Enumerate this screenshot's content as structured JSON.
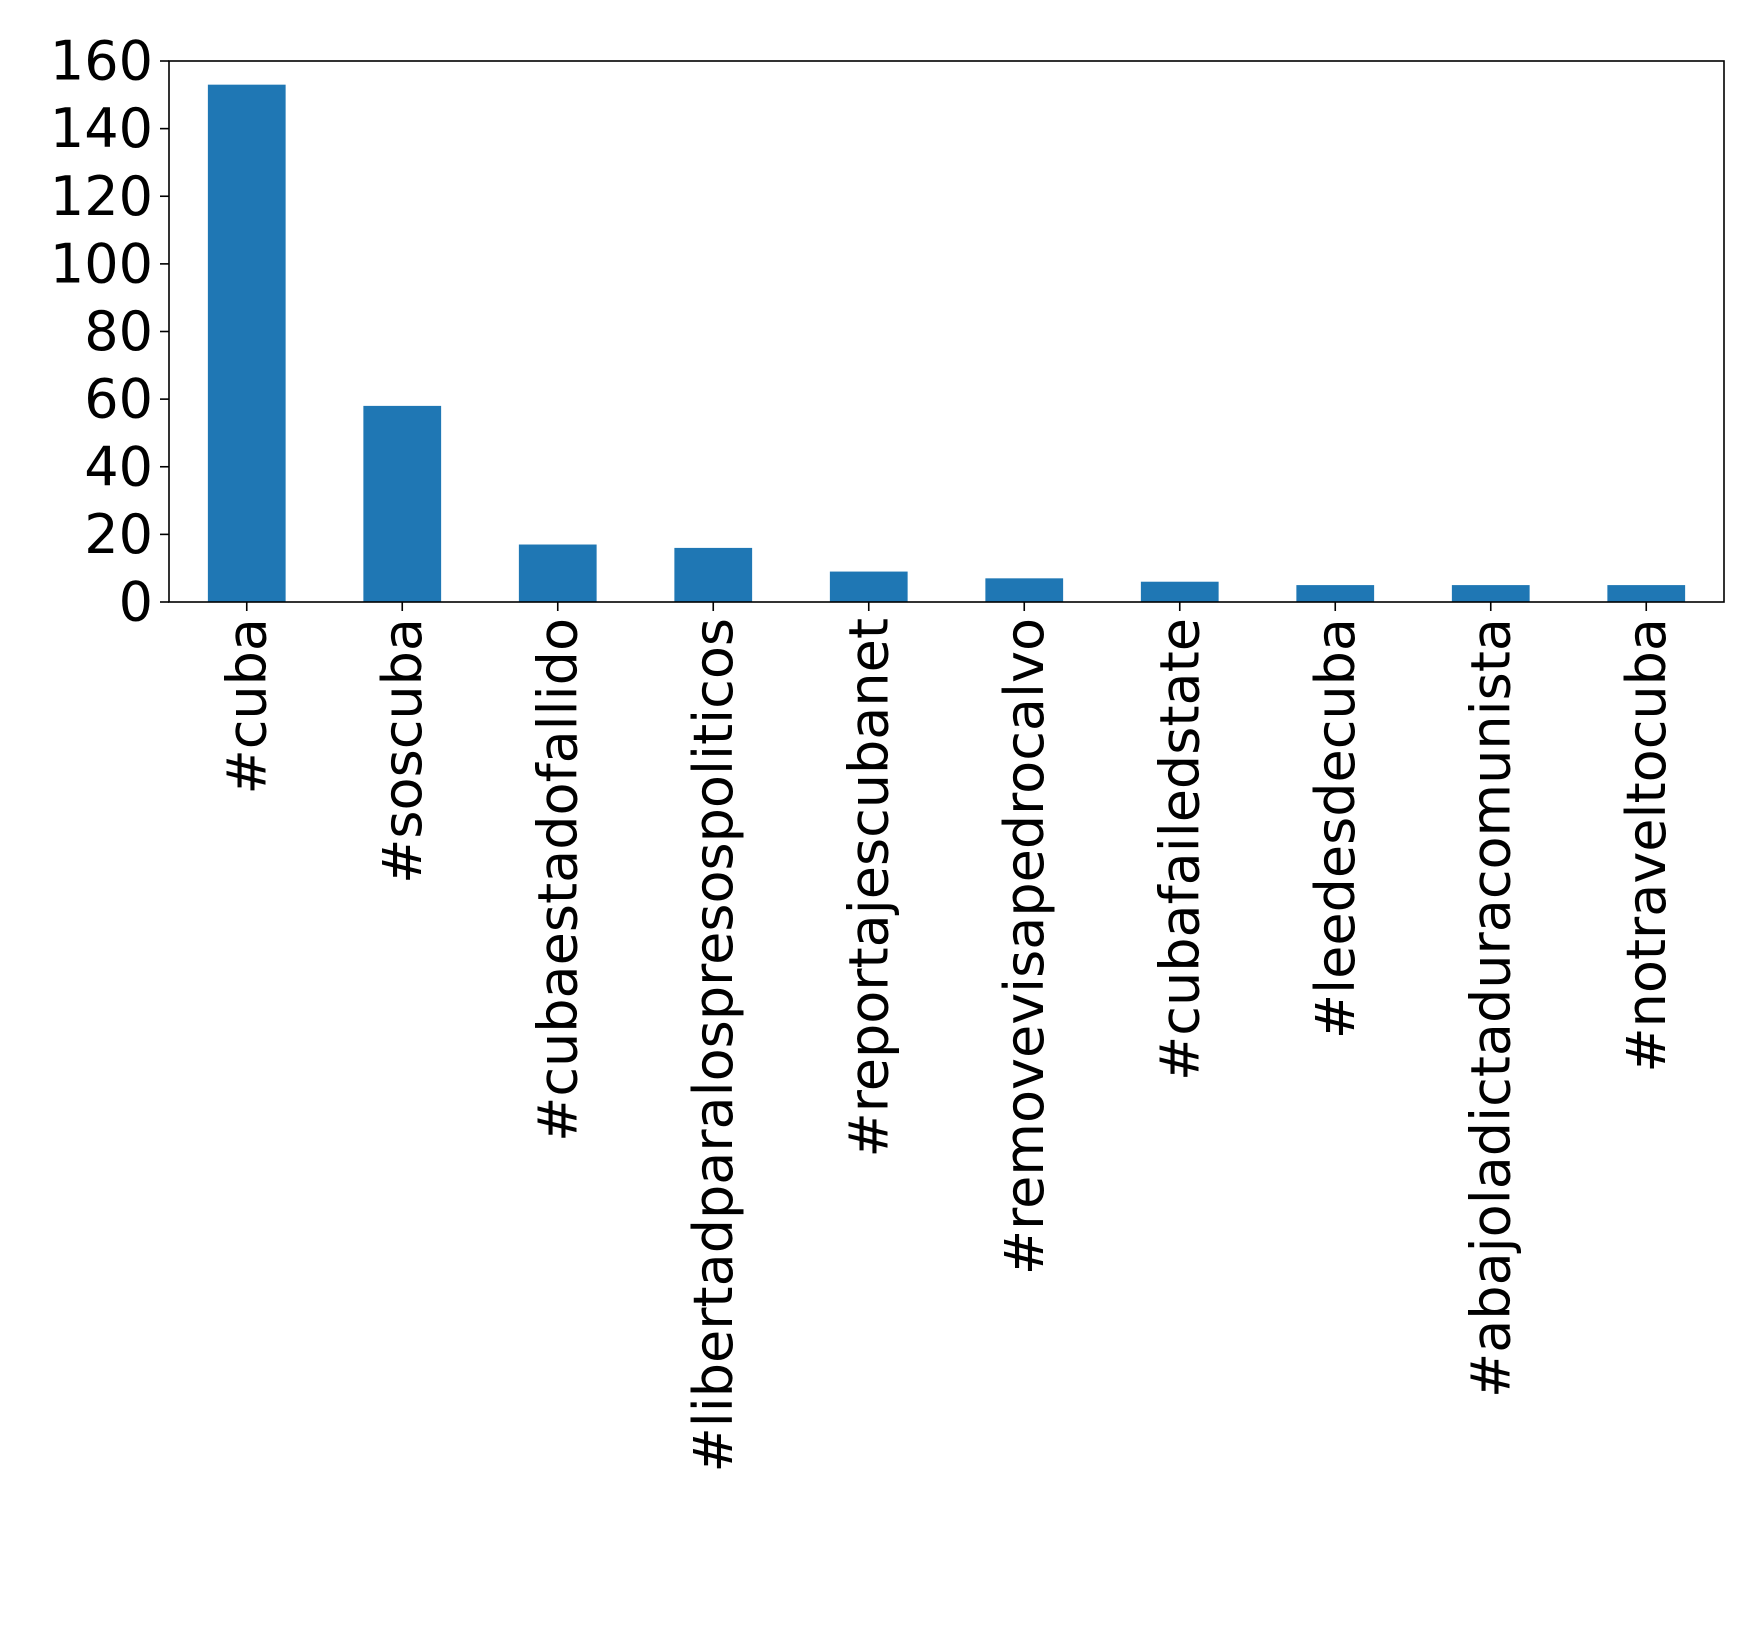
{
  "chart_data": {
    "type": "bar",
    "title": "",
    "xlabel": "",
    "ylabel": "",
    "categories": [
      "#cuba",
      "#soscuba",
      "#cubaestadofallido",
      "#libertadparalospresospoliticos",
      "#reportajescubanet",
      "#removevisapedrocalvo",
      "#cubafailedstate",
      "#leedesdecuba",
      "#abajoladictaduracomunista",
      "#notraveltocuba"
    ],
    "values": [
      153,
      58,
      17,
      16,
      9,
      7,
      6,
      5,
      5,
      5
    ],
    "ylim": [
      0,
      160
    ],
    "yticks": [
      0,
      20,
      40,
      60,
      80,
      100,
      120,
      140,
      160
    ],
    "grid": false,
    "legend": "none",
    "colors": {
      "bar": "#1f77b4",
      "axis": "#000000"
    }
  }
}
